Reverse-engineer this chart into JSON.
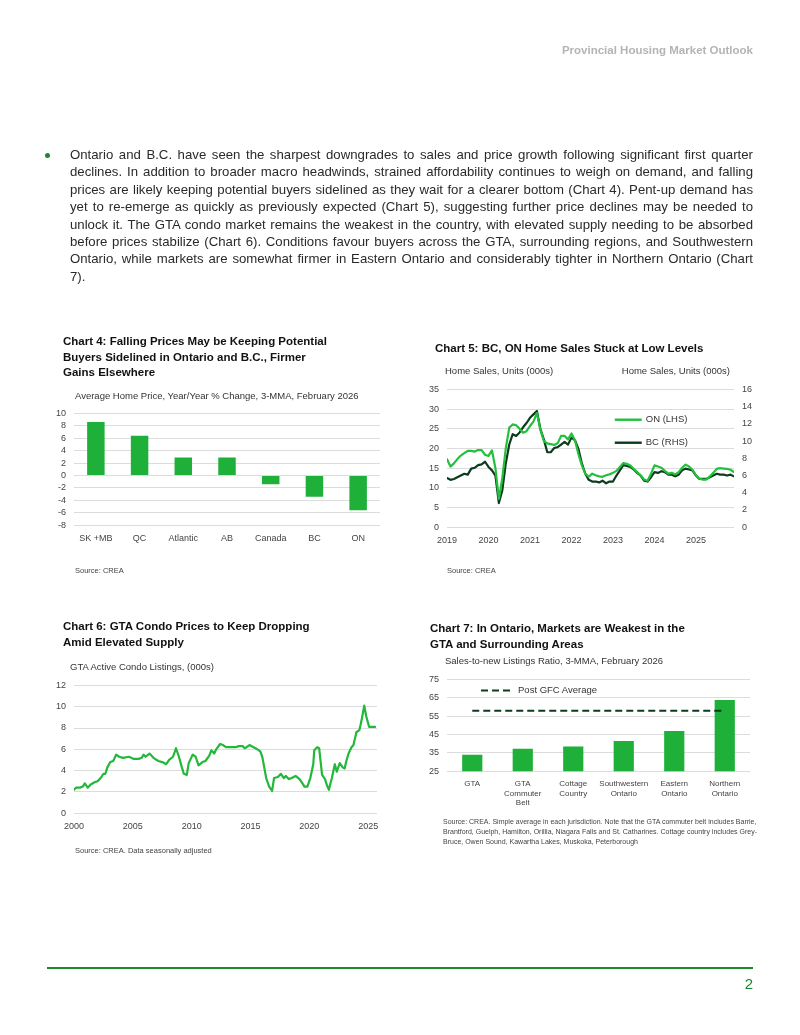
{
  "chart_data": [
    {
      "type": "other",
      "annotations": [
        "Provincial Housing Market Outlook",
        "Ontario and B.C. have seen the sharpest downgrades to sales and price growth following significant first quarter declines. In addition to broader macro headwinds, strained affordability continues to weigh on demand, and falling prices are likely keeping potential buyers sidelined as they wait for a clearer bottom (Chart 4). Pent-up demand has yet to re-emerge as quickly as previously expected (Chart 5), suggesting further price declines may be needed to unlock it. The GTA condo market remains the weakest in the country, with elevated supply needing to be absorbed before prices stabilize (Chart 6). Conditions favour buyers across the GTA, surrounding regions, and Southwestern Ontario, while markets are somewhat firmer in Eastern Ontario and considerably tighter in Northern Ontario (Chart 7).",
        "2"
      ]
    },
    {
      "type": "bar",
      "title": "Chart 4: Falling Prices May be Keeping Potential Buyers Sidelined in Ontario and B.C., Firmer Gains Elsewhere",
      "ylabel": "Average Home Price, Year/Year % Change, 3-MMA, February 2026",
      "categories": [
        "SK +MB",
        "QC",
        "Atlantic",
        "AB",
        "Canada",
        "BC",
        "ON"
      ],
      "values": [
        8.6,
        6.4,
        2.9,
        2.9,
        -1.4,
        -3.4,
        -5.6
      ],
      "color": "#1fb03a",
      "ylim": [
        -8,
        10
      ],
      "yticks": [
        -8,
        -6,
        -4,
        -2,
        0,
        2,
        4,
        6,
        8,
        10
      ],
      "grid": "y",
      "annotations": [
        "Source: CREA"
      ]
    },
    {
      "type": "line",
      "title": "Chart 5: BC, ON Home Sales Stuck at Low Levels",
      "ylabel": "Home Sales, Units (000s)",
      "y2label": "Home Sales, Units (000s)",
      "x": [
        "2019-01",
        "2019-02",
        "2019-03",
        "2019-04",
        "2019-05",
        "2019-06",
        "2019-07",
        "2019-08",
        "2019-09",
        "2019-10",
        "2019-11",
        "2019-12",
        "2020-01",
        "2020-02",
        "2020-03",
        "2020-04",
        "2020-05",
        "2020-06",
        "2020-07",
        "2020-08",
        "2020-09",
        "2020-10",
        "2020-11",
        "2020-12",
        "2021-01",
        "2021-02",
        "2021-03",
        "2021-04",
        "2021-05",
        "2021-06",
        "2021-07",
        "2021-08",
        "2021-09",
        "2021-10",
        "2021-11",
        "2021-12",
        "2022-01",
        "2022-02",
        "2022-03",
        "2022-04",
        "2022-05",
        "2022-06",
        "2022-07",
        "2022-08",
        "2022-09",
        "2022-10",
        "2022-11",
        "2022-12",
        "2023-01",
        "2023-02",
        "2023-03",
        "2023-04",
        "2023-05",
        "2023-06",
        "2023-07",
        "2023-08",
        "2023-09",
        "2023-10",
        "2023-11",
        "2023-12",
        "2024-01",
        "2024-02",
        "2024-03",
        "2024-04",
        "2024-05",
        "2024-06",
        "2024-07",
        "2024-08",
        "2024-09",
        "2024-10",
        "2024-11",
        "2024-12",
        "2025-01",
        "2025-02",
        "2025-03",
        "2025-04",
        "2025-05",
        "2025-06",
        "2025-07",
        "2025-08",
        "2025-09",
        "2025-10",
        "2025-11",
        "2025-12"
      ],
      "series": [
        {
          "name": "ON (LHS)",
          "color": "#22c03c",
          "values": [
            17.3,
            15.4,
            16.2,
            17.3,
            18.2,
            18.8,
            19.4,
            19.4,
            19.2,
            19.6,
            19.6,
            18.4,
            18.1,
            19.5,
            15.0,
            7.2,
            12.5,
            20.0,
            25.3,
            26.1,
            25.9,
            25.0,
            24.0,
            24.4,
            25.7,
            26.8,
            29.0,
            24.8,
            21.9,
            21.3,
            21.1,
            20.9,
            21.3,
            23.2,
            23.2,
            22.3,
            23.8,
            22.1,
            18.6,
            15.7,
            13.6,
            12.8,
            13.6,
            13.2,
            12.9,
            12.8,
            13.2,
            13.4,
            13.8,
            14.3,
            15.3,
            16.3,
            16.1,
            15.7,
            14.8,
            14.0,
            13.2,
            12.1,
            11.8,
            13.6,
            15.7,
            15.4,
            15.1,
            14.3,
            13.6,
            13.8,
            13.4,
            14.0,
            15.1,
            15.9,
            15.4,
            14.6,
            13.2,
            12.3,
            12.1,
            12.1,
            12.9,
            13.8,
            14.8,
            15.0,
            14.9,
            14.8,
            14.6,
            14.0
          ]
        },
        {
          "name": "BC (RHS)",
          "color": "#0d3b1e",
          "axis": "y2",
          "values": [
            5.7,
            5.5,
            5.6,
            5.8,
            6.0,
            6.2,
            6.1,
            6.8,
            6.9,
            7.2,
            7.3,
            7.6,
            7.0,
            6.6,
            6.0,
            2.8,
            4.3,
            7.4,
            9.6,
            10.8,
            10.6,
            11.0,
            11.6,
            12.1,
            12.7,
            13.1,
            13.5,
            11.4,
            10.2,
            8.7,
            8.7,
            9.2,
            9.3,
            9.6,
            9.9,
            9.6,
            10.4,
            10.1,
            9.1,
            7.4,
            6.2,
            5.5,
            5.3,
            5.3,
            5.2,
            5.4,
            5.1,
            5.3,
            5.3,
            6.0,
            6.6,
            7.2,
            7.1,
            7.0,
            6.7,
            6.3,
            6.0,
            5.4,
            5.3,
            5.8,
            6.4,
            6.3,
            6.5,
            6.4,
            6.1,
            6.1,
            5.9,
            6.1,
            6.6,
            6.8,
            6.7,
            6.6,
            6.0,
            5.6,
            5.6,
            5.6,
            5.8,
            6.0,
            6.2,
            6.1,
            6.1,
            6.0,
            6.1,
            5.9
          ]
        }
      ],
      "xlim": [
        "2019-01",
        "2025-12"
      ],
      "xticks": [
        "2019",
        "2020",
        "2021",
        "2022",
        "2023",
        "2024",
        "2025"
      ],
      "ylim": [
        0,
        35
      ],
      "yticks": [
        0,
        5,
        10,
        15,
        20,
        25,
        30,
        35
      ],
      "y2lim": [
        0,
        16
      ],
      "y2ticks": [
        0,
        2,
        4,
        6,
        8,
        10,
        12,
        14,
        16
      ],
      "grid": "y",
      "legend": "top right",
      "annotations": [
        "Source: CREA"
      ]
    },
    {
      "type": "line",
      "title": "Chart 6: GTA Condo Prices to Keep Dropping Amid Elevated Supply",
      "ylabel": "GTA Active Condo Listings, (000s)",
      "x": [
        "2000-01",
        "2000-03",
        "2000-07",
        "2000-10",
        "2000-12",
        "2001-03",
        "2001-06",
        "2001-10",
        "2002-01",
        "2002-05",
        "2002-07",
        "2002-09",
        "2002-11",
        "2003-02",
        "2003-05",
        "2003-08",
        "2003-11",
        "2004-03",
        "2004-09",
        "2005-02",
        "2005-07",
        "2005-10",
        "2005-12",
        "2006-02",
        "2006-06",
        "2006-10",
        "2007-03",
        "2007-07",
        "2007-11",
        "2008-02",
        "2008-06",
        "2008-09",
        "2008-12",
        "2009-03",
        "2009-05",
        "2009-08",
        "2009-10",
        "2010-02",
        "2010-05",
        "2010-08",
        "2010-12",
        "2011-03",
        "2011-07",
        "2011-09",
        "2011-12",
        "2012-02",
        "2012-06",
        "2012-09",
        "2012-12",
        "2013-03",
        "2013-07",
        "2013-10",
        "2014-01",
        "2014-05",
        "2014-07",
        "2014-09",
        "2014-12",
        "2015-04",
        "2015-08",
        "2015-11",
        "2016-01",
        "2016-03",
        "2016-05",
        "2016-08",
        "2016-11",
        "2017-01",
        "2017-05",
        "2017-08",
        "2017-11",
        "2018-01",
        "2018-04",
        "2018-07",
        "2018-11",
        "2019-03",
        "2019-06",
        "2019-08",
        "2019-11",
        "2020-02",
        "2020-05",
        "2020-06",
        "2020-09",
        "2020-11",
        "2021-02",
        "2021-05",
        "2021-07",
        "2021-09",
        "2021-10",
        "2021-12",
        "2022-03",
        "2022-05",
        "2022-08",
        "2022-11",
        "2023-01",
        "2023-03",
        "2023-05",
        "2023-08",
        "2023-10",
        "2024-01",
        "2024-04",
        "2024-06",
        "2024-09",
        "2024-11",
        "2025-02",
        "2025-08"
      ],
      "values": [
        2.2,
        2.4,
        2.4,
        2.5,
        2.8,
        2.4,
        2.7,
        2.9,
        3.0,
        3.4,
        3.7,
        3.7,
        4.3,
        4.8,
        4.9,
        5.5,
        5.3,
        5.2,
        5.3,
        5.1,
        5.1,
        5.2,
        5.5,
        5.3,
        5.6,
        5.2,
        4.9,
        4.8,
        4.6,
        5.0,
        5.3,
        6.1,
        5.3,
        4.3,
        3.7,
        3.6,
        4.7,
        5.5,
        5.3,
        4.5,
        4.8,
        4.9,
        5.4,
        5.9,
        5.6,
        6.0,
        6.5,
        6.4,
        6.2,
        6.2,
        6.2,
        6.2,
        6.3,
        6.3,
        6.1,
        6.2,
        6.4,
        6.2,
        6.0,
        5.8,
        5.3,
        4.3,
        3.3,
        2.5,
        2.1,
        3.3,
        3.4,
        3.7,
        3.3,
        3.5,
        3.2,
        3.3,
        3.5,
        3.2,
        2.8,
        2.5,
        2.5,
        3.3,
        4.6,
        5.9,
        6.2,
        6.1,
        3.6,
        3.2,
        2.6,
        2.2,
        2.6,
        3.3,
        4.6,
        3.9,
        4.7,
        4.3,
        4.2,
        5.0,
        5.6,
        6.2,
        6.4,
        7.6,
        7.8,
        8.6,
        10.1,
        9.1,
        8.1,
        8.1
      ],
      "color": "#22b83a",
      "xlim": [
        "2000-01",
        "2025-10"
      ],
      "xticks": [
        "2000",
        "2005",
        "2010",
        "2015",
        "2020",
        "2025"
      ],
      "ylim": [
        0,
        12
      ],
      "yticks": [
        0,
        2,
        4,
        6,
        8,
        10,
        12
      ],
      "grid": "y",
      "annotations": [
        "Source: CREA. Data seasonally adjusted"
      ]
    },
    {
      "type": "bar",
      "title": "Chart 7: In Ontario, Markets are Weakest in the GTA and Surrounding Areas",
      "ylabel": "Sales-to-new Listings Ratio, 3-MMA, February 2026",
      "categories": [
        "GTA",
        "GTA Commuter Belt",
        "Cottage Country",
        "Southwestern Ontario",
        "Eastern Ontario",
        "Northern Ontario"
      ],
      "values": [
        33.9,
        37.2,
        38.4,
        41.4,
        46.9,
        63.8
      ],
      "color": "#1fb03a",
      "ylim": [
        25,
        75
      ],
      "yticks": [
        25,
        35,
        45,
        55,
        65,
        75
      ],
      "grid": "y",
      "ref_lines": [
        {
          "axis": "y",
          "value": 57.9,
          "label": "Post GFC Average",
          "color": "#0d3b1e",
          "line_style": "dashed"
        }
      ],
      "annotations": [
        "Source: CREA. Simple average in each jurisdiction. Note that the GTA commuter belt includes Barrie, Brantford, Guelph, Hamilton, Orillia, Niagara Falls and St. Catharines. Cottage country includes Grey-Bruce, Owen Sound, Kawartha Lakes, Muskoka, Peterborough"
      ]
    }
  ]
}
